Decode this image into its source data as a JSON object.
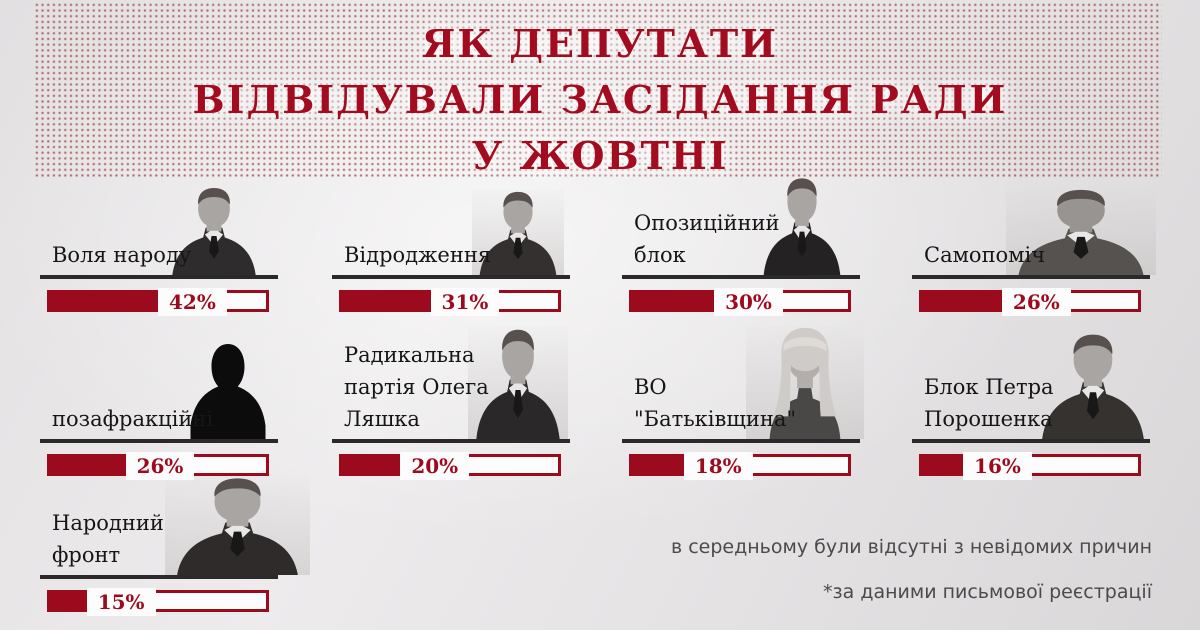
{
  "title": {
    "line1": "ЯК ДЕПУТАТИ",
    "line2": "ВІДВІДУВАЛИ ЗАСІДАННЯ РАДИ",
    "line3": "У ЖОВТНІ"
  },
  "footer": {
    "note1": "в середньому були відсутні з невідомих причин",
    "note2": "*за даними письмової реєстрації"
  },
  "colors": {
    "accent_red": "#9c0a1d",
    "title_red": "#a30b1f",
    "rule_black": "#2b292a",
    "footer_gray": "#4b4b4b",
    "background_gray": "#e6e4e5"
  },
  "chart_data": {
    "type": "bar",
    "title": "ЯК ДЕПУТАТИ ВІДВІДУВАЛИ ЗАСІДАННЯ РАДИ У ЖОВТНІ",
    "unit": "%",
    "note": "в середньому були відсутні з невідомих причин",
    "source": "*за даними письмової реєстрації",
    "legend_position": "none",
    "grid": false,
    "xlim": [
      0,
      100
    ],
    "categories": [
      "Воля народу",
      "Відродження",
      "Опозиційний блок",
      "Самопоміч",
      "позафракційні",
      "Радикальна партія Олега Ляшка",
      "ВО \"Батьківщина\"",
      "Блок Петра Порошенка",
      "Народний фронт"
    ],
    "values": [
      42,
      31,
      30,
      26,
      26,
      20,
      18,
      16,
      15
    ],
    "items": [
      {
        "party": "Воля народу",
        "value": 42,
        "value_label": "42%",
        "fill_pct": 50,
        "photo": "male-bust"
      },
      {
        "party": "Відродження",
        "value": 31,
        "value_label": "31%",
        "fill_pct": 41,
        "photo": "male-bust"
      },
      {
        "party": "Опозиційний блок",
        "value": 30,
        "value_label": "30%",
        "fill_pct": 38,
        "photo": "male-bust"
      },
      {
        "party": "Самопоміч",
        "value": 26,
        "value_label": "26%",
        "fill_pct": 37,
        "photo": "male-bust"
      },
      {
        "party": "позафракційні",
        "value": 26,
        "value_label": "26%",
        "fill_pct": 35,
        "photo": "anonymous-silhouette"
      },
      {
        "party": "Радикальна партія Олега Ляшка",
        "value": 20,
        "value_label": "20%",
        "fill_pct": 27,
        "photo": "male-bust"
      },
      {
        "party": "ВО \"Батьківщина\"",
        "value": 18,
        "value_label": "18%",
        "fill_pct": 24,
        "photo": "female-bust"
      },
      {
        "party": "Блок Петра Порошенка",
        "value": 16,
        "value_label": "16%",
        "fill_pct": 19,
        "photo": "male-bust"
      },
      {
        "party": "Народний фронт",
        "value": 15,
        "value_label": "15%",
        "fill_pct": 17,
        "photo": "male-bust"
      }
    ]
  }
}
